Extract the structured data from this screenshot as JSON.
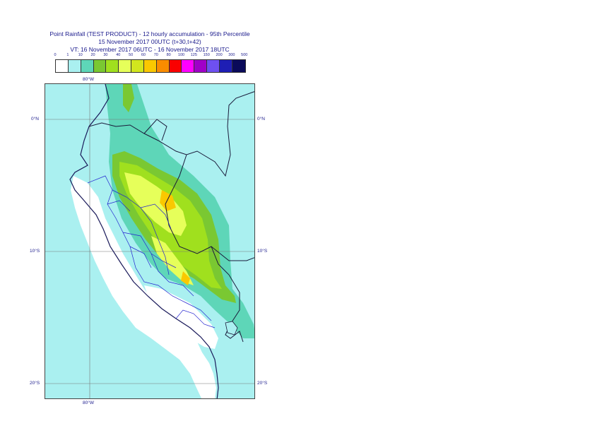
{
  "header": {
    "title_line1": "Point Rainfall (TEST PRODUCT) - 12 hourly accumulation - 95th Percentile",
    "title_line2": "15 November 2017 00UTC (t+30,t+42)",
    "title_line3": "VT: 16 November 2017 06UTC - 16 November 2017 18UTC"
  },
  "legend": {
    "thresholds": [
      "0",
      "1",
      "10",
      "20",
      "30",
      "40",
      "50",
      "60",
      "70",
      "80",
      "100",
      "125",
      "150",
      "200",
      "300",
      "500"
    ],
    "colors": [
      "#ffffff",
      "#aaf0f0",
      "#5ed6b8",
      "#7ac832",
      "#a0e01e",
      "#e6ff5a",
      "#d2e61e",
      "#fac800",
      "#fa8c00",
      "#fa0000",
      "#ff00ff",
      "#a000c8",
      "#6e50f0",
      "#1e1eb4",
      "#0a0a5a"
    ]
  },
  "map": {
    "ocean_color": "#aaf0f0",
    "lat_labels_left": [
      "0°N",
      "10°S",
      "20°S"
    ],
    "lat_labels_right": [
      "0°N",
      "10°S",
      "20°S"
    ],
    "lon_label_top": "80°W",
    "lon_label_bottom": "80°W"
  }
}
